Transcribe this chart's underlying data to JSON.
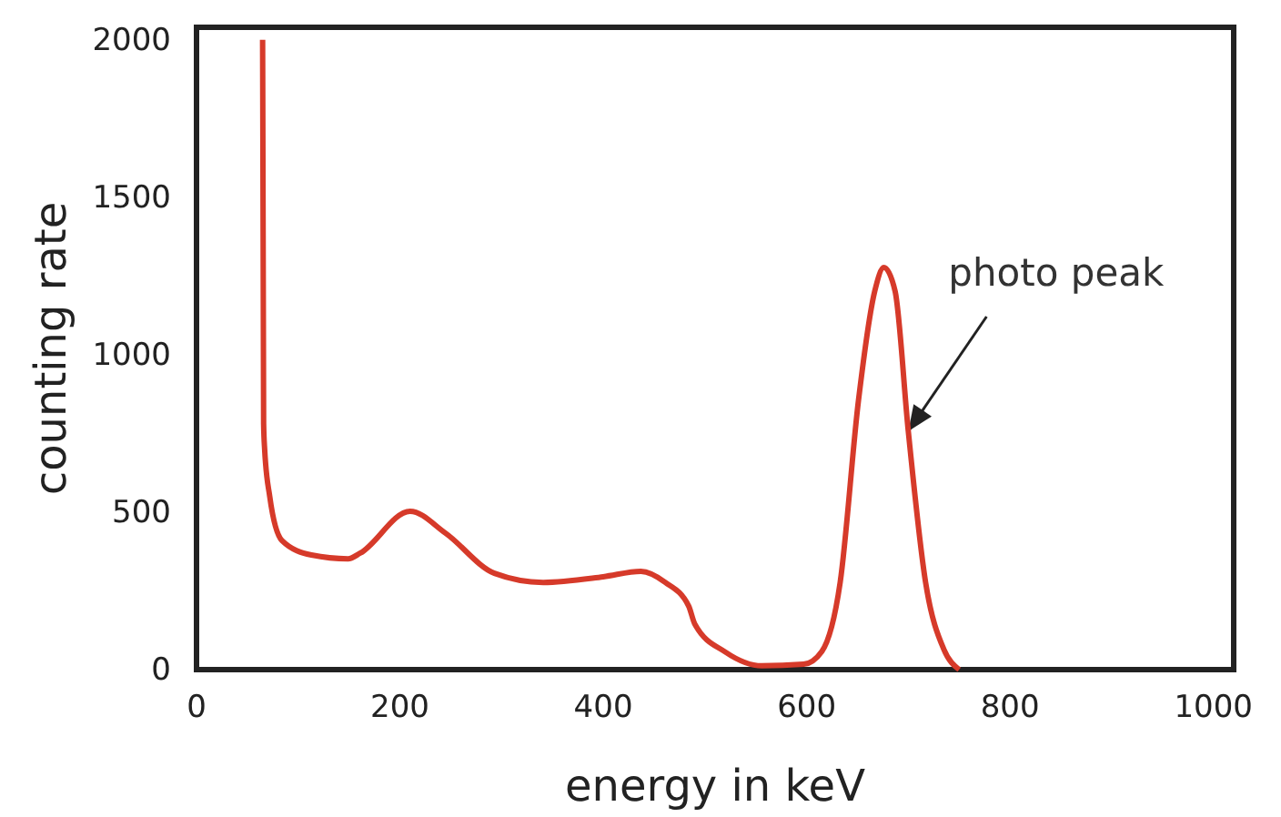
{
  "chart_data": {
    "type": "line",
    "xlabel": "energy in keV",
    "ylabel": "counting rate",
    "xlim": [
      0,
      1020
    ],
    "ylim": [
      0,
      2040
    ],
    "xticks": [
      0,
      200,
      400,
      600,
      800,
      1000
    ],
    "yticks": [
      0,
      500,
      1000,
      1500,
      2000
    ],
    "grid": false,
    "marker": "none",
    "line_style": "solid",
    "series": [
      {
        "color": "#d63a2a",
        "x": [
          65,
          66,
          67,
          72,
          84,
          113,
          149,
          161,
          210,
          245,
          293,
          341,
          400,
          437,
          461,
          484,
          490,
          520,
          556,
          597,
          615,
          633,
          651,
          667,
          676,
          687,
          700,
          717,
          735,
          750
        ],
        "values": [
          2000,
          780,
          700,
          550,
          410,
          364,
          352,
          370,
          503,
          433,
          306,
          277,
          295,
          312,
          277,
          202,
          145,
          56,
          12,
          17,
          58,
          277,
          855,
          1202,
          1277,
          1202,
          757,
          277,
          64,
          0
        ]
      }
    ],
    "annotations": [
      {
        "text": "photo peak",
        "x": 700,
        "y": 757
      }
    ]
  }
}
